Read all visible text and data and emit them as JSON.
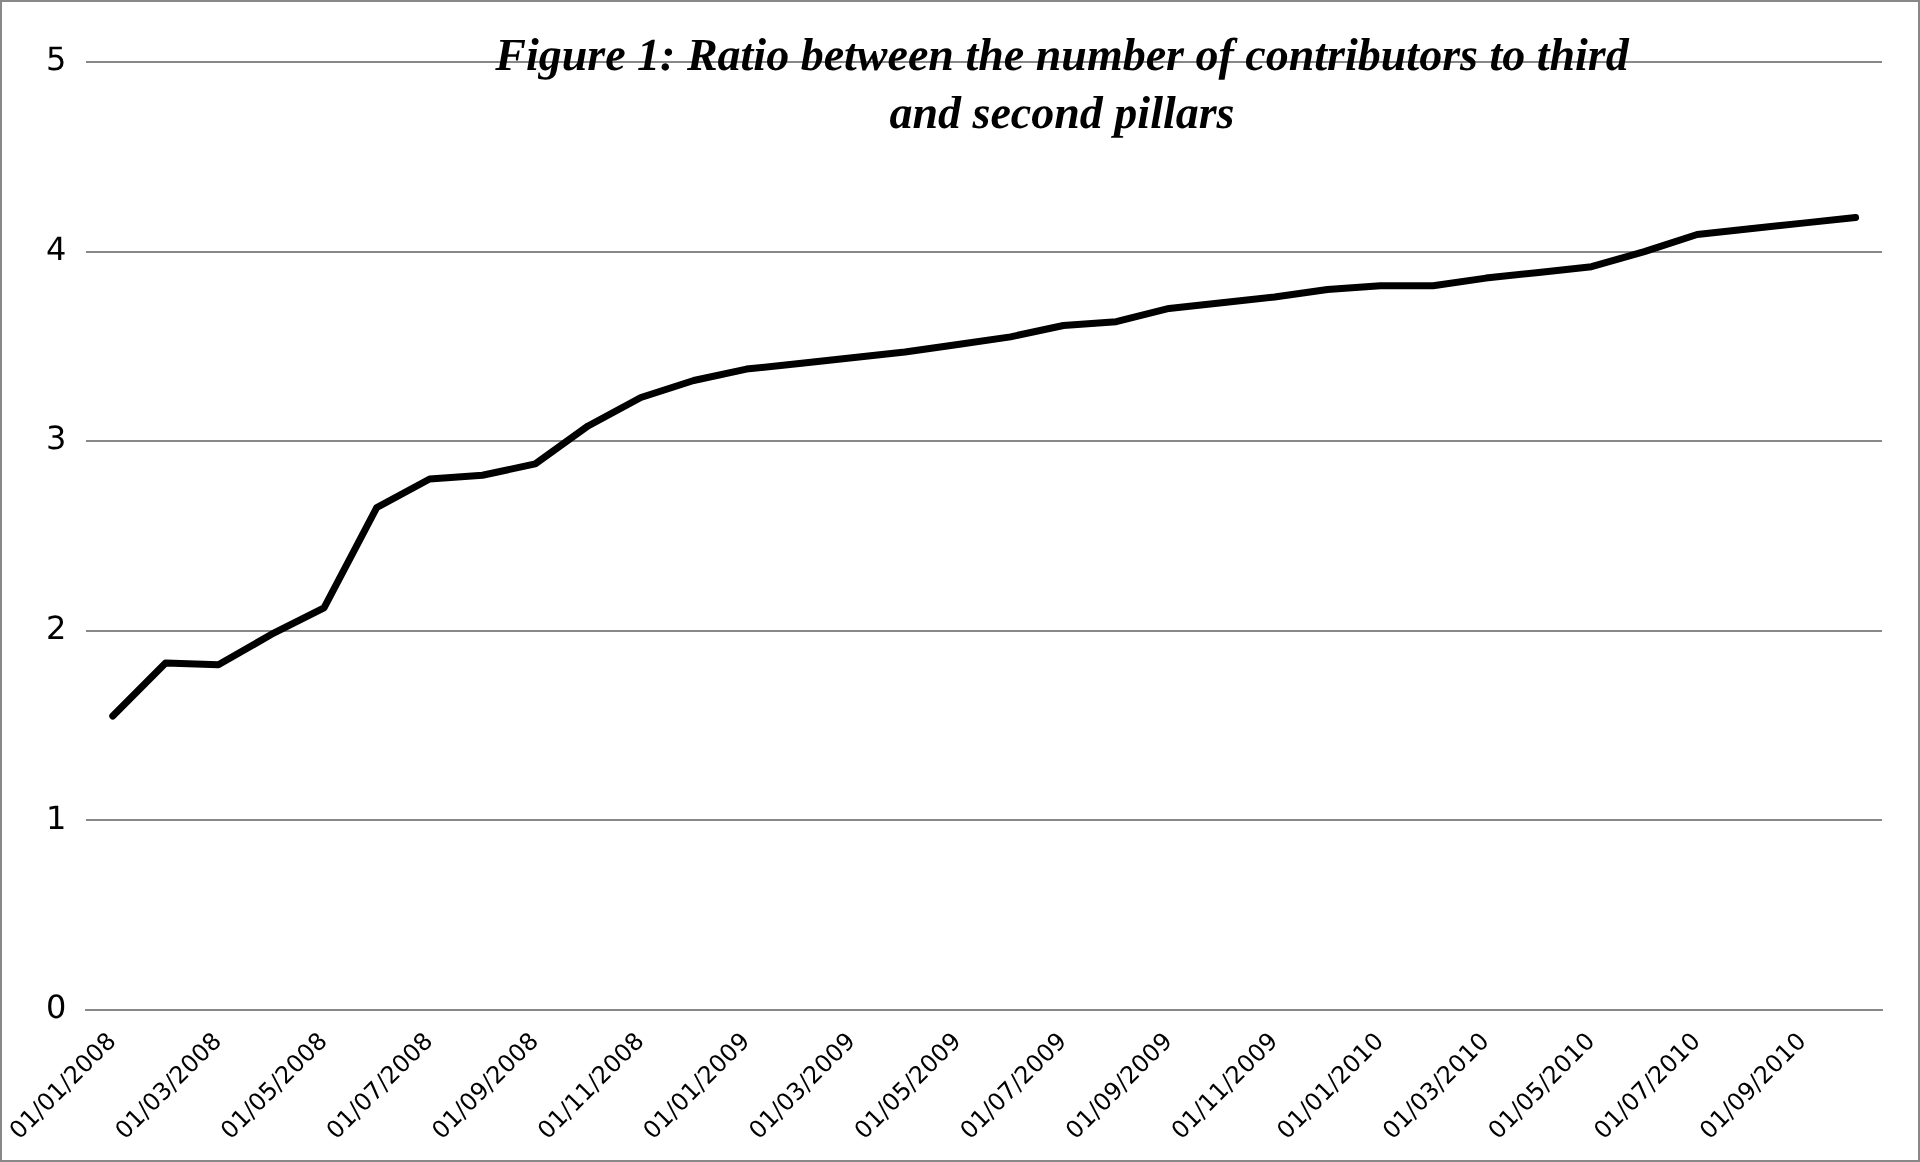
{
  "chart_data": {
    "type": "line",
    "title": "Figure 1: Ratio between the number of contributors to third and second pillars",
    "categories": [
      "01/01/2008",
      null,
      "01/03/2008",
      null,
      "01/05/2008",
      null,
      "01/07/2008",
      null,
      "01/09/2008",
      null,
      "01/11/2008",
      null,
      "01/01/2009",
      null,
      "01/03/2009",
      null,
      "01/05/2009",
      null,
      "01/07/2009",
      null,
      "01/09/2009",
      null,
      "01/11/2009",
      null,
      "01/01/2010",
      null,
      "01/03/2010",
      null,
      "01/05/2010",
      null,
      "01/07/2010",
      null,
      "01/09/2010",
      null
    ],
    "series": [
      {
        "color": "#000000",
        "values": [
          1.55,
          1.83,
          1.82,
          1.98,
          2.12,
          2.65,
          2.8,
          2.82,
          2.88,
          3.08,
          3.23,
          3.32,
          3.38,
          3.41,
          3.44,
          3.47,
          3.51,
          3.55,
          3.61,
          3.63,
          3.7,
          3.73,
          3.76,
          3.8,
          3.82,
          3.82,
          3.86,
          3.89,
          3.92,
          4.0,
          4.09,
          4.12,
          4.15,
          4.18
        ]
      }
    ],
    "ylim": [
      0,
      5
    ],
    "yticks": [
      0,
      1,
      2,
      3,
      4,
      5
    ],
    "grid": "y",
    "legend": false,
    "marker": "none",
    "line_style": "solid"
  }
}
